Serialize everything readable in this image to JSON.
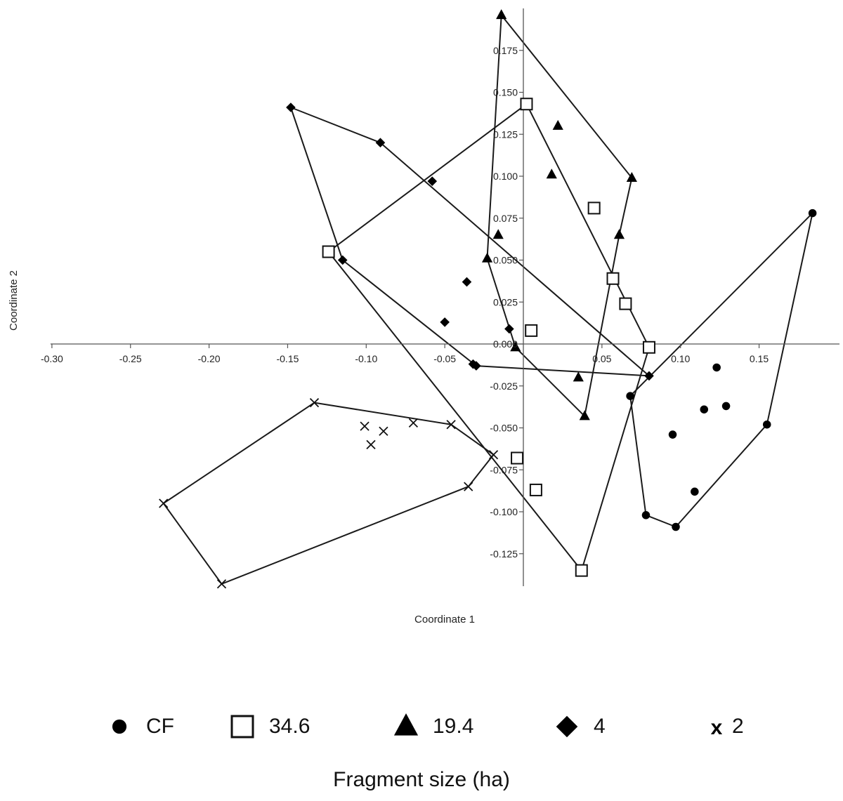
{
  "chart_data": {
    "type": "scatter",
    "xlabel": "Coordinate 1",
    "ylabel": "Coordinate 2",
    "xlim": [
      -0.3,
      0.19
    ],
    "ylim": [
      -0.145,
      0.19
    ],
    "x_ticks": [
      "-0.30",
      "-0.25",
      "-0.20",
      "-0.15",
      "-0.10",
      "-0.05",
      "0.05",
      "0.10",
      "0.15"
    ],
    "y_ticks": [
      "0.175",
      "0.150",
      "0.125",
      "0.100",
      "0.075",
      "0.050",
      "0.025",
      "0.000",
      "-0.025",
      "-0.050",
      "-0.075",
      "-0.100",
      "-0.125"
    ],
    "hull_outlines": true,
    "legend_title": "Fragment size (ha)",
    "legend_position": "bottom",
    "series": [
      {
        "name": "CF",
        "marker": "filled-circle",
        "points": [
          [
            0.184,
            0.078
          ],
          [
            0.123,
            -0.014
          ],
          [
            0.129,
            -0.037
          ],
          [
            0.115,
            -0.039
          ],
          [
            0.068,
            -0.031
          ],
          [
            0.095,
            -0.054
          ],
          [
            0.155,
            -0.048
          ],
          [
            0.109,
            -0.088
          ],
          [
            0.078,
            -0.102
          ],
          [
            0.097,
            -0.109
          ]
        ],
        "hull": [
          [
            0.184,
            0.078
          ],
          [
            0.155,
            -0.048
          ],
          [
            0.097,
            -0.109
          ],
          [
            0.078,
            -0.102
          ],
          [
            0.068,
            -0.031
          ]
        ]
      },
      {
        "name": "34.6",
        "marker": "open-square",
        "points": [
          [
            0.002,
            0.143
          ],
          [
            0.045,
            0.081
          ],
          [
            -0.124,
            0.055
          ],
          [
            0.057,
            0.039
          ],
          [
            0.065,
            0.024
          ],
          [
            0.005,
            0.008
          ],
          [
            0.08,
            -0.002
          ],
          [
            -0.004,
            -0.068
          ],
          [
            0.008,
            -0.087
          ],
          [
            0.037,
            -0.135
          ]
        ],
        "hull": [
          [
            0.002,
            0.143
          ],
          [
            0.08,
            -0.002
          ],
          [
            0.037,
            -0.135
          ],
          [
            -0.124,
            0.055
          ]
        ]
      },
      {
        "name": "19.4",
        "marker": "filled-triangle",
        "points": [
          [
            -0.014,
            0.196
          ],
          [
            0.022,
            0.13
          ],
          [
            0.069,
            0.099
          ],
          [
            0.018,
            0.101
          ],
          [
            -0.016,
            0.065
          ],
          [
            0.061,
            0.065
          ],
          [
            -0.023,
            0.051
          ],
          [
            -0.005,
            -0.002
          ],
          [
            0.035,
            -0.02
          ],
          [
            0.039,
            -0.043
          ]
        ],
        "hull": [
          [
            -0.014,
            0.196
          ],
          [
            0.069,
            0.099
          ],
          [
            0.061,
            0.065
          ],
          [
            0.039,
            -0.043
          ],
          [
            -0.005,
            -0.002
          ],
          [
            -0.023,
            0.051
          ]
        ]
      },
      {
        "name": "4",
        "marker": "filled-diamond",
        "points": [
          [
            -0.148,
            0.141
          ],
          [
            -0.091,
            0.12
          ],
          [
            -0.058,
            0.097
          ],
          [
            -0.115,
            0.05
          ],
          [
            -0.036,
            0.037
          ],
          [
            -0.05,
            0.013
          ],
          [
            -0.009,
            0.009
          ],
          [
            -0.03,
            -0.013
          ],
          [
            -0.032,
            -0.012
          ],
          [
            0.08,
            -0.019
          ]
        ],
        "hull": [
          [
            -0.148,
            0.141
          ],
          [
            -0.091,
            0.12
          ],
          [
            0.08,
            -0.019
          ],
          [
            -0.03,
            -0.013
          ],
          [
            -0.115,
            0.05
          ]
        ]
      },
      {
        "name": "2",
        "marker": "x",
        "points": [
          [
            -0.133,
            -0.035
          ],
          [
            -0.101,
            -0.049
          ],
          [
            -0.089,
            -0.052
          ],
          [
            -0.097,
            -0.06
          ],
          [
            -0.07,
            -0.047
          ],
          [
            -0.046,
            -0.048
          ],
          [
            -0.019,
            -0.066
          ],
          [
            -0.035,
            -0.085
          ],
          [
            -0.229,
            -0.095
          ],
          [
            -0.192,
            -0.143
          ]
        ],
        "hull": [
          [
            -0.133,
            -0.035
          ],
          [
            -0.046,
            -0.048
          ],
          [
            -0.019,
            -0.066
          ],
          [
            -0.035,
            -0.085
          ],
          [
            -0.192,
            -0.143
          ],
          [
            -0.229,
            -0.095
          ]
        ]
      }
    ]
  }
}
